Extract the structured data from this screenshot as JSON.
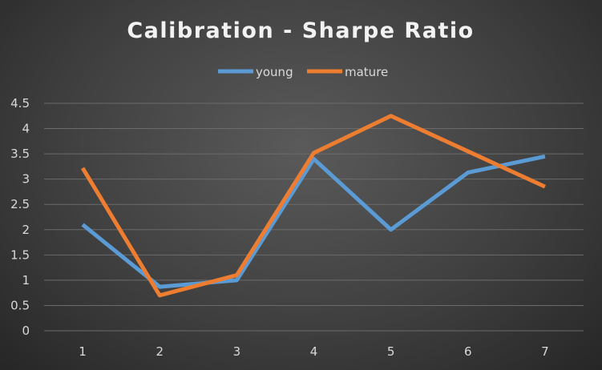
{
  "chart_data": {
    "type": "line",
    "title": "Calibration  - Sharpe Ratio",
    "categories": [
      "1",
      "2",
      "3",
      "4",
      "5",
      "6",
      "7"
    ],
    "series": [
      {
        "name": "young",
        "color": "#5b9bd5",
        "values": [
          2.1,
          0.87,
          1.0,
          3.4,
          2.0,
          3.13,
          3.45
        ]
      },
      {
        "name": "mature",
        "color": "#ed7d31",
        "values": [
          3.22,
          0.7,
          1.1,
          3.52,
          4.25,
          3.55,
          2.85
        ]
      }
    ],
    "ylim": [
      0,
      4.5
    ],
    "yticks": [
      "0",
      "0.5",
      "1",
      "1.5",
      "2",
      "2.5",
      "3",
      "3.5",
      "4",
      "4.5"
    ],
    "grid": true,
    "legend_position": "top"
  }
}
